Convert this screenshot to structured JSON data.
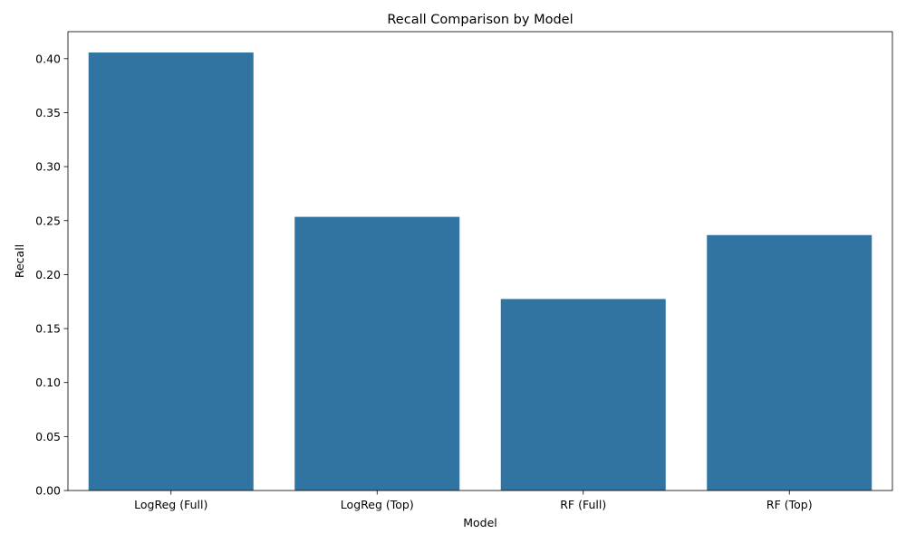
{
  "chart_data": {
    "type": "bar",
    "title": "Recall Comparison by Model",
    "xlabel": "Model",
    "ylabel": "Recall",
    "categories": [
      "LogReg (Full)",
      "LogReg (Top)",
      "RF (Full)",
      "RF (Top)"
    ],
    "values": [
      0.4057,
      0.2535,
      0.1774,
      0.2366
    ],
    "ylim": [
      0,
      0.425
    ],
    "yticks": [
      "0.00",
      "0.05",
      "0.10",
      "0.15",
      "0.20",
      "0.25",
      "0.30",
      "0.35",
      "0.40"
    ],
    "grid": false,
    "legend": "none",
    "bar_color": "#3274a1"
  }
}
